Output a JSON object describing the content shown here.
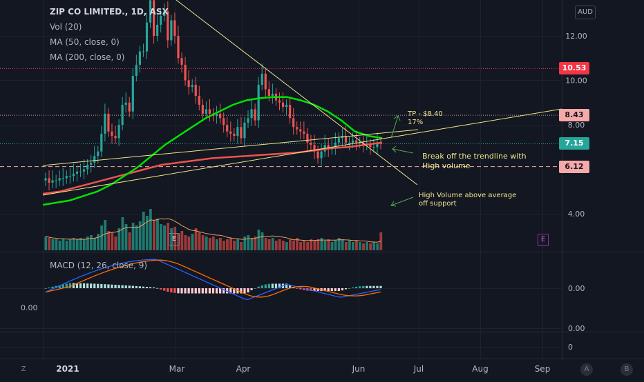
{
  "header": {
    "title": "ZIP CO LIMITED., 1D, ASX",
    "indicators": [
      "Vol (20)",
      "MA (50, close, 0)",
      "MA (200, close, 0)"
    ],
    "macd_label": "MACD (12, 26, close, 9)",
    "currency": "AUD"
  },
  "price_badges": [
    {
      "label": "10.53",
      "value": 10.53,
      "bg": "#f23645",
      "fg": "#ffffff"
    },
    {
      "label": "8.43",
      "value": 8.43,
      "bg": "#f7a8a8",
      "fg": "#131722"
    },
    {
      "label": "7.15",
      "value": 7.15,
      "bg": "#26a69a",
      "fg": "#ffffff"
    },
    {
      "label": "6.12",
      "value": 6.12,
      "bg": "#f7a8a8",
      "fg": "#131722"
    }
  ],
  "annotations": {
    "tp_line1": "TP - $8.40",
    "tp_line2": "17%",
    "break_line1": "Break off the trendline with",
    "break_line2": "High volume",
    "vol_line1": "High Volume above average",
    "vol_line2": "off support"
  },
  "earnings_marker": "E",
  "toolbar": {
    "left": "Z",
    "a": "A",
    "b": "B"
  },
  "colors": {
    "up": "#26a69a",
    "down": "#ef5350",
    "ma50": "#00e400",
    "ma200": "#ef5350",
    "trendline": "#f0e68c",
    "macd": "#2962ff",
    "signal": "#ff6d00",
    "earnings": "#9c27b0"
  },
  "chart_data": {
    "type": "candlestick",
    "x_axis_labels": [
      "2021",
      "Mar",
      "Apr",
      "Jun",
      "Jul",
      "Aug",
      "Sep"
    ],
    "price_axis": {
      "ticks": [
        "12.00",
        "10.00",
        "8.00",
        "4.00"
      ],
      "tick_values": [
        12,
        10,
        8,
        4
      ],
      "range": [
        1.6,
        14
      ]
    },
    "macd_axis": {
      "ticks": [
        "0.00",
        "0.00",
        "0"
      ],
      "left_tick": "0.00"
    },
    "closes": [
      5.6,
      5.4,
      5.5,
      5.5,
      5.6,
      5.6,
      5.7,
      5.7,
      5.8,
      5.9,
      5.9,
      6.0,
      6.2,
      6.3,
      6.6,
      6.8,
      7.6,
      8.5,
      7.7,
      7.5,
      7.4,
      8.0,
      8.9,
      9.0,
      8.6,
      10.2,
      10.7,
      11.3,
      11.3,
      12.6,
      13.6,
      12.0,
      12.5,
      12.9,
      13.1,
      11.8,
      12.7,
      12.0,
      11.0,
      10.7,
      10.0,
      9.7,
      9.8,
      9.3,
      8.9,
      8.5,
      8.7,
      8.5,
      8.4,
      8.5,
      8.3,
      8.0,
      7.7,
      7.6,
      7.5,
      7.9,
      7.4,
      8.1,
      8.3,
      8.7,
      8.2,
      9.8,
      10.3,
      9.6,
      9.3,
      9.4,
      9.1,
      9.0,
      8.8,
      8.9,
      8.3,
      7.9,
      7.8,
      7.7,
      7.6,
      7.2,
      7.1,
      6.8,
      6.5,
      6.8,
      7.1,
      6.9,
      7.0,
      7.2,
      7.4,
      7.5,
      7.2,
      7.2,
      7.3,
      7.2,
      7.2,
      7.1,
      7.1,
      7.0,
      7.0,
      7.2,
      7.15
    ],
    "volumes": [
      1.0,
      0.9,
      0.8,
      0.8,
      0.7,
      0.8,
      0.7,
      0.8,
      0.9,
      0.8,
      0.9,
      0.8,
      1.0,
      1.1,
      0.9,
      1.2,
      1.8,
      2.2,
      1.4,
      1.3,
      1.0,
      1.6,
      2.4,
      1.9,
      1.3,
      2.0,
      1.8,
      2.1,
      2.8,
      2.5,
      3.0,
      2.2,
      2.3,
      1.9,
      1.8,
      2.0,
      1.6,
      1.7,
      1.2,
      1.4,
      1.1,
      1.0,
      1.2,
      1.6,
      1.3,
      1.1,
      1.0,
      0.9,
      1.0,
      0.8,
      0.9,
      0.7,
      0.8,
      0.9,
      0.7,
      0.8,
      0.6,
      1.0,
      1.1,
      0.9,
      1.0,
      1.5,
      1.3,
      0.9,
      0.8,
      0.9,
      0.7,
      0.8,
      0.7,
      0.6,
      0.8,
      0.7,
      0.9,
      0.6,
      0.7,
      0.6,
      0.8,
      0.7,
      0.8,
      0.9,
      0.7,
      0.8,
      0.6,
      0.7,
      0.9,
      0.8,
      0.6,
      0.7,
      0.6,
      0.7,
      0.6,
      0.5,
      0.6,
      0.5,
      0.6,
      0.5,
      1.3
    ],
    "ma50": [
      4.4,
      4.5,
      4.6,
      4.8,
      5.0,
      5.3,
      5.7,
      6.1,
      6.6,
      7.1,
      7.5,
      7.9,
      8.3,
      8.6,
      8.9,
      9.1,
      9.2,
      9.25,
      9.25,
      9.1,
      8.9,
      8.6,
      8.2,
      7.7,
      7.5,
      7.4
    ],
    "ma200": [
      4.9,
      5.0,
      5.2,
      5.4,
      5.6,
      5.8,
      6.0,
      6.2,
      6.3,
      6.4,
      6.5,
      6.55,
      6.6,
      6.65,
      6.7,
      6.75,
      6.85,
      6.95,
      7.0,
      7.1,
      7.2
    ],
    "key_levels": [
      10.53,
      8.43,
      6.12
    ]
  }
}
